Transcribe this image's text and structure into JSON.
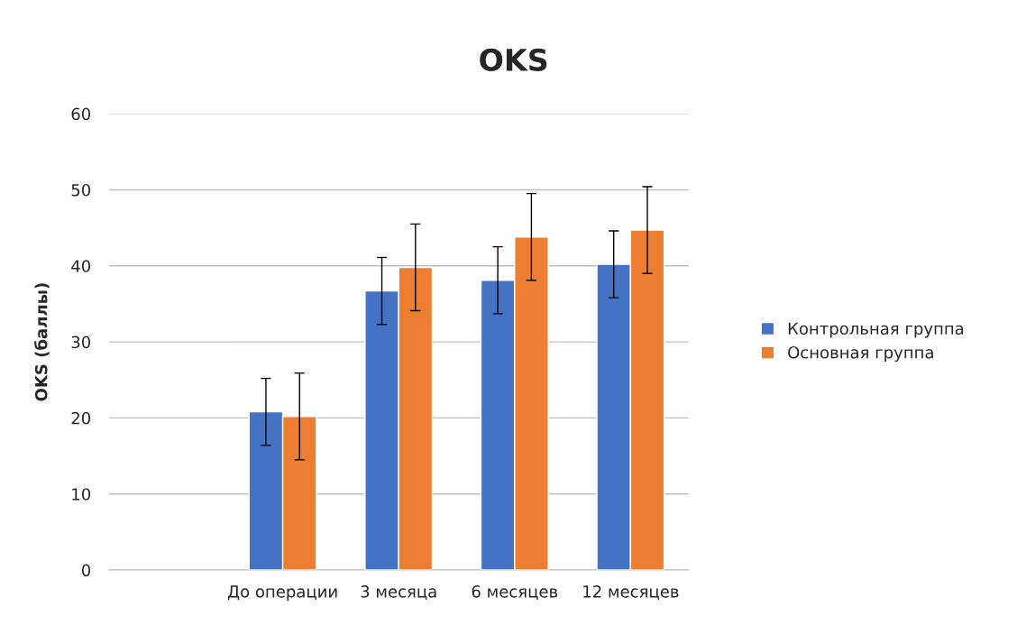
{
  "chart_data": {
    "type": "bar",
    "title": "OKS",
    "ylabel": "OKS (баллы)",
    "categories": [
      null,
      "До операции",
      "3 месяца",
      "6 месяцев",
      "12 месяцев"
    ],
    "series": [
      {
        "name": "Контрольная группа",
        "color": "#4472c4",
        "values": [
          null,
          20.8,
          36.7,
          38.1,
          40.2
        ],
        "errors": [
          null,
          4.4,
          4.4,
          4.4,
          4.4
        ]
      },
      {
        "name": "Основная группа",
        "color": "#ed7d31",
        "values": [
          null,
          20.2,
          39.8,
          43.8,
          44.7
        ],
        "errors": [
          null,
          5.7,
          5.7,
          5.7,
          5.7
        ]
      }
    ],
    "ylim": [
      0,
      60
    ],
    "yticks": [
      0,
      10,
      20,
      30,
      40,
      50,
      60
    ],
    "grid": "y",
    "legend": "right"
  }
}
